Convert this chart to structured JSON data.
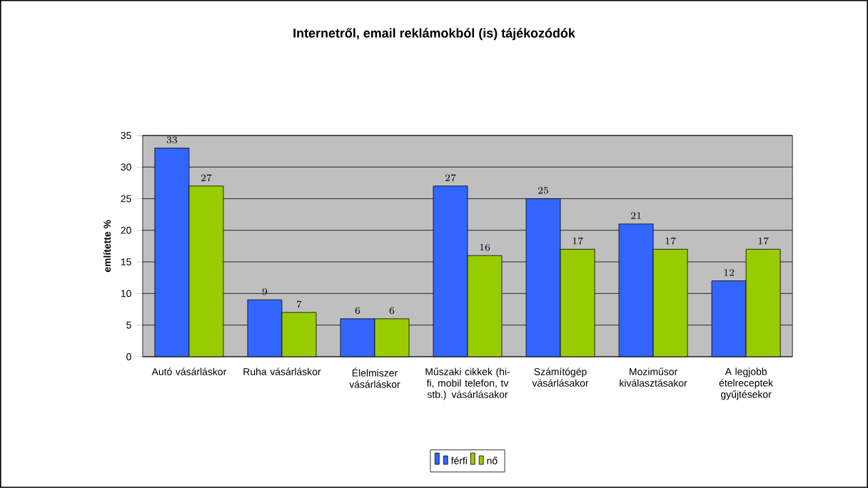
{
  "chart_data": {
    "type": "bar",
    "title": "Internetről, email reklámokból (is) tájékozódók",
    "ylabel": "említette %",
    "categories": [
      "Autó vásárláskor",
      "Ruha vásárláskor",
      "Élelmiszer vásárláskor",
      "Műszaki cikkek (hi-fi, mobil telefon, tv stb.) vásárlásakor",
      "Számítógép vásárlásakor",
      "Moziműsor kiválasztásakor",
      "A legjobb ételreceptek gyűjtésekor"
    ],
    "series": [
      {
        "name": "férfi",
        "color": "#3366ff",
        "values": [
          33,
          9,
          6,
          27,
          25,
          21,
          12
        ]
      },
      {
        "name": "nő",
        "color": "#99cc00",
        "values": [
          27,
          7,
          6,
          16,
          17,
          17,
          17
        ]
      }
    ],
    "ylim": [
      0,
      35
    ],
    "yticks": [
      0,
      5,
      10,
      15,
      20,
      25,
      30,
      35
    ],
    "grid": "y",
    "legend": "bottom",
    "data_labels": true
  }
}
